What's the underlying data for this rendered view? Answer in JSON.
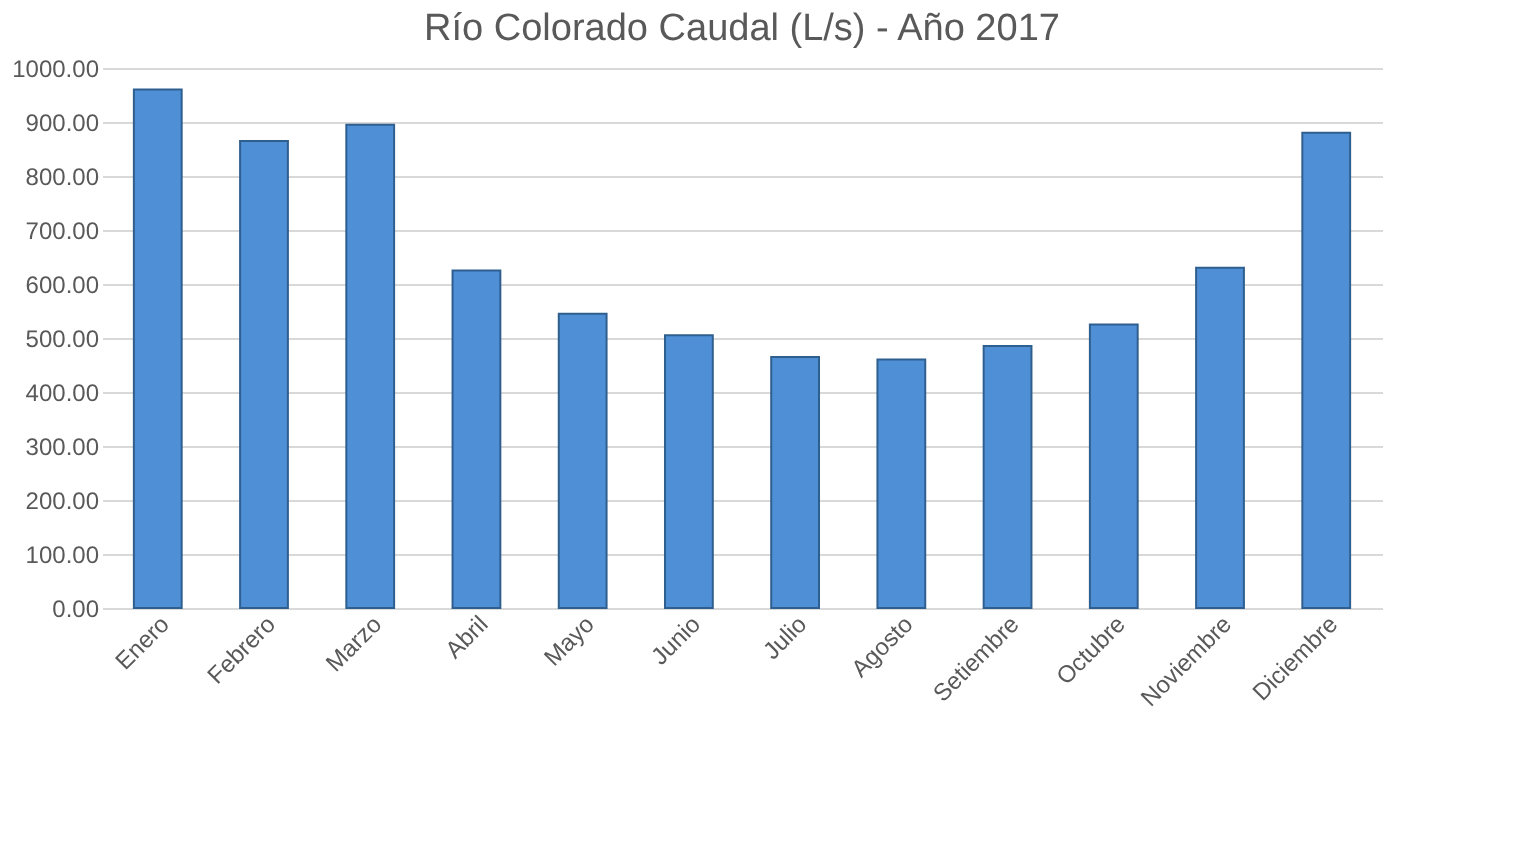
{
  "chart_data": {
    "type": "bar",
    "title": "Río Colorado Caudal (L/s) - Año 2017",
    "categories": [
      "Enero",
      "Febrero",
      "Marzo",
      "Abril",
      "Mayo",
      "Junio",
      "Julio",
      "Agosto",
      "Setiembre",
      "Octubre",
      "Noviembre",
      "Diciembre"
    ],
    "values": [
      960,
      865,
      895,
      625,
      545,
      505,
      465,
      460,
      485,
      525,
      630,
      880
    ],
    "color": "#4f8fd6",
    "ylim": [
      0,
      1000
    ],
    "yticks": [
      {
        "value": 0,
        "label": "0.00"
      },
      {
        "value": 100,
        "label": "100.00"
      },
      {
        "value": 200,
        "label": "200.00"
      },
      {
        "value": 300,
        "label": "300.00"
      },
      {
        "value": 400,
        "label": "400.00"
      },
      {
        "value": 500,
        "label": "500.00"
      },
      {
        "value": 600,
        "label": "600.00"
      },
      {
        "value": 700,
        "label": "700.00"
      },
      {
        "value": 800,
        "label": "800.00"
      },
      {
        "value": 900,
        "label": "900.00"
      },
      {
        "value": 1000,
        "label": "1000.00"
      }
    ],
    "grid": "y"
  }
}
